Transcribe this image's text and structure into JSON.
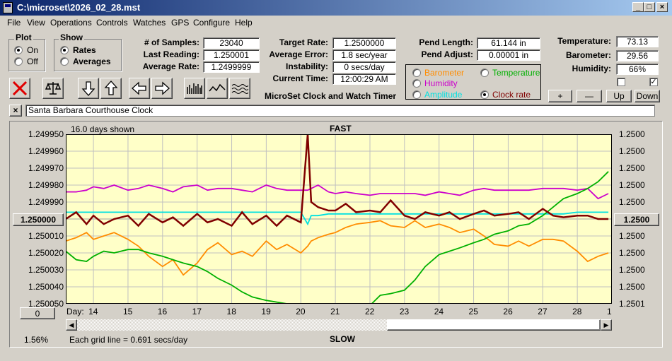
{
  "window": {
    "title": "C:\\microset\\2026_02_28.mst"
  },
  "menu": [
    "File",
    "View",
    "Operations",
    "Controls",
    "Watches",
    "GPS",
    "Configure",
    "Help"
  ],
  "plot": {
    "title": "Plot",
    "on": "On",
    "off": "Off",
    "selected": "On"
  },
  "show": {
    "title": "Show",
    "rates": "Rates",
    "averages": "Averages",
    "selected": "Rates"
  },
  "samples": {
    "num_samples_label": "# of Samples:",
    "num_samples": "23040",
    "last_reading_label": "Last Reading:",
    "last_reading": "1.250001",
    "average_rate_label": "Average Rate:",
    "average_rate": "1.2499999"
  },
  "target": {
    "target_rate_label": "Target Rate:",
    "target_rate": "1.2500000",
    "average_error_label": "Average Error:",
    "average_error": "1.8 sec/year",
    "instability_label": "Instability:",
    "instability": "0 secs/day",
    "current_time_label": "Current Time:",
    "current_time": "12:00:29 AM",
    "subtitle": "MicroSet Clock and Watch Timer"
  },
  "pend": {
    "pend_length_label": "Pend Length:",
    "pend_length": "61.144 in",
    "pend_adjust_label": "Pend Adjust:",
    "pend_adjust": "0.00001 in"
  },
  "series_selector": {
    "barometer": "Barometer",
    "temperature": "Temperature",
    "humidity": "Humidity",
    "amplitude": "Amplitude",
    "clock_rate": "Clock rate",
    "selected": "Clock rate",
    "colors": {
      "barometer": "#ff8c00",
      "temperature": "#00b000",
      "humidity": "#cc00cc",
      "amplitude": "#00e0e0",
      "clock_rate": "#800000"
    }
  },
  "env": {
    "temperature_label": "Temperature:",
    "temperature": "73.13",
    "barometer_label": "Barometer:",
    "barometer": "29.56",
    "humidity_label": "Humidity:",
    "humidity": "66%"
  },
  "scale_buttons": {
    "plus": "+",
    "minus": "—",
    "up": "Up",
    "down": "Down"
  },
  "clock_name": "Santa Barbara Courthouse Clock",
  "close_label": "×",
  "chart": {
    "days_shown": "16.0 days shown",
    "top_label": "FAST",
    "bottom_label": "SLOW",
    "left_center": "1.250000",
    "right_center": "1.2500",
    "left_offset": "0",
    "zoom": "1.56%",
    "grid_note": "Each grid line = 0.691 secs/day",
    "day_label": "Day:"
  },
  "chart_data": {
    "type": "line",
    "y_left_ticks": [
      "1.249950",
      "1.249960",
      "1.249970",
      "1.249980",
      "1.249990",
      "1.250000",
      "1.250010",
      "1.250020",
      "1.250030",
      "1.250040",
      "1.250050"
    ],
    "y_right_ticks": [
      "1.2500",
      "1.2500",
      "1.2500",
      "1.2500",
      "1.2500",
      "1.2500",
      "1.2500",
      "1.2500",
      "1.2500",
      "1.2500",
      "1.2501"
    ],
    "x_ticks": [
      "14",
      "15",
      "16",
      "17",
      "18",
      "19",
      "20",
      "21",
      "22",
      "23",
      "24",
      "25",
      "26",
      "27",
      "28",
      "1"
    ],
    "x": [
      13.2,
      13.5,
      13.8,
      14.0,
      14.3,
      14.6,
      15.0,
      15.3,
      15.6,
      16.0,
      16.3,
      16.6,
      17.0,
      17.3,
      17.6,
      18.0,
      18.3,
      18.6,
      19.0,
      19.3,
      19.6,
      20.0,
      20.2,
      20.3,
      20.5,
      20.8,
      21.0,
      21.3,
      21.6,
      22.0,
      22.3,
      22.6,
      23.0,
      23.3,
      23.6,
      24.0,
      24.3,
      24.6,
      25.0,
      25.3,
      25.6,
      26.0,
      26.3,
      26.6,
      27.0,
      27.3,
      27.6,
      28.0,
      28.3,
      28.6,
      28.9
    ],
    "series": [
      {
        "name": "Clock rate",
        "color": "#800000",
        "values": [
          1.25,
          1.249996,
          1.250003,
          1.249998,
          1.250003,
          1.25,
          1.249998,
          1.250004,
          1.249997,
          1.250002,
          1.249999,
          1.250004,
          1.249997,
          1.250002,
          1.25,
          1.250004,
          1.249996,
          1.250003,
          1.249998,
          1.250004,
          1.249998,
          1.250002,
          1.24995,
          1.24999,
          1.249993,
          1.249995,
          1.249995,
          1.249991,
          1.249996,
          1.249995,
          1.249996,
          1.249989,
          1.249998,
          1.25,
          1.249996,
          1.249998,
          1.249996,
          1.25,
          1.249997,
          1.249995,
          1.249998,
          1.249997,
          1.249996,
          1.25,
          1.249994,
          1.249998,
          1.249999,
          1.249998,
          1.249998,
          1.25,
          1.25
        ]
      },
      {
        "name": "Humidity",
        "color": "#cc00cc",
        "values": [
          1.249984,
          1.249984,
          1.249983,
          1.249981,
          1.249982,
          1.24998,
          1.249983,
          1.249982,
          1.24998,
          1.249982,
          1.249984,
          1.249981,
          1.24998,
          1.249983,
          1.249982,
          1.249982,
          1.249983,
          1.249984,
          1.24998,
          1.249982,
          1.249983,
          1.249983,
          1.249983,
          1.249982,
          1.24998,
          1.249984,
          1.249985,
          1.249984,
          1.249985,
          1.249986,
          1.249985,
          1.249985,
          1.249985,
          1.249985,
          1.249986,
          1.249984,
          1.249985,
          1.249986,
          1.249983,
          1.249982,
          1.249983,
          1.249983,
          1.249983,
          1.249983,
          1.249982,
          1.249982,
          1.249982,
          1.249983,
          1.249982,
          1.249988,
          1.249985
        ]
      },
      {
        "name": "Amplitude",
        "color": "#00e0e0",
        "values": [
          1.249996,
          1.249996,
          1.249996,
          1.249996,
          1.249996,
          1.249996,
          1.249996,
          1.249996,
          1.249996,
          1.249996,
          1.249996,
          1.249996,
          1.249996,
          1.249996,
          1.249996,
          1.249996,
          1.249996,
          1.249996,
          1.249996,
          1.249996,
          1.249996,
          1.249996,
          1.250003,
          1.249998,
          1.249998,
          1.249997,
          1.249997,
          1.249997,
          1.249997,
          1.249997,
          1.249997,
          1.249997,
          1.249997,
          1.249997,
          1.249997,
          1.249997,
          1.249997,
          1.249997,
          1.249997,
          1.249997,
          1.249997,
          1.249997,
          1.249997,
          1.249997,
          1.249997,
          1.249997,
          1.249997,
          1.249996,
          1.249996,
          1.249996,
          1.249996
        ]
      },
      {
        "name": "Barometer",
        "color": "#ff8c00",
        "values": [
          1.250013,
          1.250011,
          1.250008,
          1.250012,
          1.25001,
          1.250008,
          1.250012,
          1.250016,
          1.250022,
          1.250028,
          1.250024,
          1.250033,
          1.250026,
          1.250018,
          1.250014,
          1.250021,
          1.250019,
          1.250022,
          1.250013,
          1.250018,
          1.250015,
          1.25002,
          1.250016,
          1.250013,
          1.250011,
          1.250009,
          1.250008,
          1.250005,
          1.250003,
          1.250002,
          1.250001,
          1.250004,
          1.250005,
          1.250001,
          1.250005,
          1.250003,
          1.250005,
          1.250008,
          1.250006,
          1.25001,
          1.250015,
          1.250016,
          1.250013,
          1.250016,
          1.250012,
          1.250012,
          1.250013,
          1.250019,
          1.250025,
          1.250022,
          1.25002
        ]
      },
      {
        "name": "Temperature",
        "color": "#00b000",
        "values": [
          1.250019,
          1.250024,
          1.250025,
          1.250022,
          1.250019,
          1.25002,
          1.250018,
          1.250018,
          1.25002,
          1.250022,
          1.250024,
          1.250026,
          1.250028,
          1.250031,
          1.250035,
          1.250039,
          1.250043,
          1.250046,
          1.250048,
          1.250049,
          1.25005,
          1.25005,
          1.250051,
          1.250051,
          1.250051,
          1.250051,
          1.250051,
          1.250051,
          1.250051,
          1.250051,
          1.250045,
          1.250044,
          1.250042,
          1.250036,
          1.250028,
          1.250021,
          1.250019,
          1.250017,
          1.250014,
          1.250012,
          1.250009,
          1.250007,
          1.250004,
          1.250003,
          1.249998,
          1.249993,
          1.249988,
          1.249985,
          1.249982,
          1.249978,
          1.249972
        ]
      }
    ],
    "ylim": [
      1.24995,
      1.25005
    ],
    "xlim": [
      13.2,
      29.0
    ]
  }
}
